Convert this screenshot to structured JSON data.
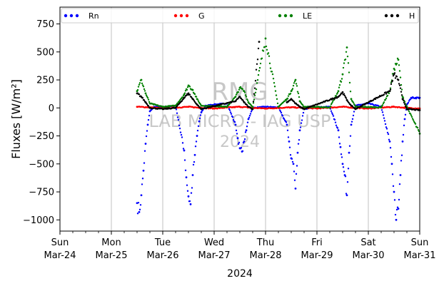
{
  "chart_data": {
    "type": "scatter",
    "title": "",
    "ylabel": "Fluxes [W/m²]",
    "xlabel": "2024",
    "ylim": [
      -1100,
      900
    ],
    "y_ticks": [
      750,
      500,
      250,
      0,
      -250,
      -500,
      -750,
      -1000
    ],
    "xlim": [
      "2024-03-24",
      "2024-03-31"
    ],
    "x_ticks": [
      {
        "date": "2024-03-24",
        "day": "Sun",
        "label": "Mar-24"
      },
      {
        "date": "2024-03-25",
        "day": "Mon",
        "label": "Mar-25"
      },
      {
        "date": "2024-03-26",
        "day": "Tue",
        "label": "Mar-26"
      },
      {
        "date": "2024-03-27",
        "day": "Wed",
        "label": "Mar-27"
      },
      {
        "date": "2024-03-28",
        "day": "Thu",
        "label": "Mar-28"
      },
      {
        "date": "2024-03-29",
        "day": "Fri",
        "label": "Mar-29"
      },
      {
        "date": "2024-03-30",
        "day": "Sat",
        "label": "Mar-30"
      },
      {
        "date": "2024-03-31",
        "day": "Sun",
        "label": "Mar-31"
      }
    ],
    "grid": "vertical",
    "legend_position": "top",
    "watermark": [
      "RMG",
      "LAB MICRO - IAG USP",
      "2024"
    ],
    "series": [
      {
        "name": "Rn",
        "color": "#0000ff",
        "points": [
          [
            "2024-03-25 12:00",
            -850
          ],
          [
            "2024-03-25 13:00",
            -930
          ],
          [
            "2024-03-25 14:00",
            -780
          ],
          [
            "2024-03-25 15:00",
            -560
          ],
          [
            "2024-03-25 16:00",
            -320
          ],
          [
            "2024-03-25 17:00",
            -150
          ],
          [
            "2024-03-25 18:00",
            -30
          ],
          [
            "2024-03-25 20:00",
            10
          ],
          [
            "2024-03-26 00:00",
            5
          ],
          [
            "2024-03-26 06:00",
            20
          ],
          [
            "2024-03-26 10:00",
            -380
          ],
          [
            "2024-03-26 11:00",
            -620
          ],
          [
            "2024-03-26 12:00",
            -790
          ],
          [
            "2024-03-26 13:00",
            -860
          ],
          [
            "2024-03-26 14:00",
            -600
          ],
          [
            "2024-03-26 15:00",
            -420
          ],
          [
            "2024-03-26 16:00",
            -250
          ],
          [
            "2024-03-26 17:00",
            -120
          ],
          [
            "2024-03-26 18:00",
            -40
          ],
          [
            "2024-03-26 20:00",
            20
          ],
          [
            "2024-03-27 00:00",
            30
          ],
          [
            "2024-03-27 06:00",
            40
          ],
          [
            "2024-03-27 10:00",
            -150
          ],
          [
            "2024-03-27 11:00",
            -270
          ],
          [
            "2024-03-27 12:00",
            -360
          ],
          [
            "2024-03-27 13:00",
            -390
          ],
          [
            "2024-03-27 14:00",
            -300
          ],
          [
            "2024-03-27 15:00",
            -200
          ],
          [
            "2024-03-27 16:00",
            -100
          ],
          [
            "2024-03-27 18:00",
            0
          ],
          [
            "2024-03-28 00:00",
            10
          ],
          [
            "2024-03-28 06:00",
            5
          ],
          [
            "2024-03-28 10:00",
            -150
          ],
          [
            "2024-03-28 11:00",
            -300
          ],
          [
            "2024-03-28 12:00",
            -450
          ],
          [
            "2024-03-28 13:00",
            -500
          ],
          [
            "2024-03-28 14:00",
            -720
          ],
          [
            "2024-03-28 15:00",
            -400
          ],
          [
            "2024-03-28 16:00",
            -200
          ],
          [
            "2024-03-28 18:00",
            -10
          ],
          [
            "2024-03-29 00:00",
            5
          ],
          [
            "2024-03-29 06:00",
            10
          ],
          [
            "2024-03-29 10:00",
            -200
          ],
          [
            "2024-03-29 11:00",
            -350
          ],
          [
            "2024-03-29 12:00",
            -500
          ],
          [
            "2024-03-29 13:00",
            -600
          ],
          [
            "2024-03-29 14:00",
            -780
          ],
          [
            "2024-03-29 15:00",
            -400
          ],
          [
            "2024-03-29 16:00",
            -150
          ],
          [
            "2024-03-29 18:00",
            20
          ],
          [
            "2024-03-30 00:00",
            40
          ],
          [
            "2024-03-30 06:00",
            10
          ],
          [
            "2024-03-30 10:00",
            -300
          ],
          [
            "2024-03-30 11:00",
            -500
          ],
          [
            "2024-03-30 12:00",
            -750
          ],
          [
            "2024-03-30 13:00",
            -1000
          ],
          [
            "2024-03-30 14:00",
            -900
          ],
          [
            "2024-03-30 15:00",
            -600
          ],
          [
            "2024-03-30 16:00",
            -300
          ],
          [
            "2024-03-30 17:00",
            -100
          ],
          [
            "2024-03-30 18:00",
            30
          ],
          [
            "2024-03-30 20:00",
            90
          ],
          [
            "2024-03-31 00:00",
            90
          ]
        ]
      },
      {
        "name": "G",
        "color": "#ff0000",
        "points": [
          [
            "2024-03-25 12:00",
            10
          ],
          [
            "2024-03-25 18:00",
            5
          ],
          [
            "2024-03-26 00:00",
            -5
          ],
          [
            "2024-03-26 12:00",
            10
          ],
          [
            "2024-03-26 18:00",
            0
          ],
          [
            "2024-03-27 00:00",
            -5
          ],
          [
            "2024-03-27 12:00",
            10
          ],
          [
            "2024-03-27 18:00",
            0
          ],
          [
            "2024-03-28 00:00",
            -5
          ],
          [
            "2024-03-28 12:00",
            5
          ],
          [
            "2024-03-28 18:00",
            0
          ],
          [
            "2024-03-29 00:00",
            -5
          ],
          [
            "2024-03-29 12:00",
            10
          ],
          [
            "2024-03-29 18:00",
            0
          ],
          [
            "2024-03-30 00:00",
            -5
          ],
          [
            "2024-03-30 12:00",
            10
          ],
          [
            "2024-03-30 18:00",
            0
          ],
          [
            "2024-03-31 00:00",
            -5
          ]
        ]
      },
      {
        "name": "LE",
        "color": "#008000",
        "points": [
          [
            "2024-03-25 12:00",
            150
          ],
          [
            "2024-03-25 14:00",
            250
          ],
          [
            "2024-03-25 16:00",
            130
          ],
          [
            "2024-03-25 18:00",
            40
          ],
          [
            "2024-03-26 00:00",
            10
          ],
          [
            "2024-03-26 06:00",
            20
          ],
          [
            "2024-03-26 10:00",
            120
          ],
          [
            "2024-03-26 12:00",
            200
          ],
          [
            "2024-03-26 14:00",
            160
          ],
          [
            "2024-03-26 16:00",
            80
          ],
          [
            "2024-03-26 18:00",
            20
          ],
          [
            "2024-03-27 06:00",
            10
          ],
          [
            "2024-03-27 10:00",
            100
          ],
          [
            "2024-03-27 12:00",
            180
          ],
          [
            "2024-03-27 14:00",
            150
          ],
          [
            "2024-03-27 16:00",
            50
          ],
          [
            "2024-03-27 18:00",
            10
          ],
          [
            "2024-03-28 00:00",
            620
          ],
          [
            "2024-03-28 06:00",
            10
          ],
          [
            "2024-03-28 10:00",
            80
          ],
          [
            "2024-03-28 12:00",
            150
          ],
          [
            "2024-03-28 14:00",
            250
          ],
          [
            "2024-03-28 16:00",
            60
          ],
          [
            "2024-03-28 18:00",
            10
          ],
          [
            "2024-03-29 06:00",
            5
          ],
          [
            "2024-03-29 10:00",
            150
          ],
          [
            "2024-03-29 12:00",
            300
          ],
          [
            "2024-03-29 14:00",
            540
          ],
          [
            "2024-03-29 16:00",
            80
          ],
          [
            "2024-03-29 18:00",
            10
          ],
          [
            "2024-03-30 06:00",
            5
          ],
          [
            "2024-03-30 10:00",
            150
          ],
          [
            "2024-03-30 12:00",
            350
          ],
          [
            "2024-03-30 14:00",
            430
          ],
          [
            "2024-03-30 16:00",
            100
          ],
          [
            "2024-03-30 18:00",
            10
          ],
          [
            "2024-03-31 00:00",
            -230
          ]
        ]
      },
      {
        "name": "H",
        "color": "#000000",
        "points": [
          [
            "2024-03-25 12:00",
            130
          ],
          [
            "2024-03-25 14:00",
            100
          ],
          [
            "2024-03-25 16:00",
            50
          ],
          [
            "2024-03-25 18:00",
            0
          ],
          [
            "2024-03-26 00:00",
            -10
          ],
          [
            "2024-03-26 06:00",
            0
          ],
          [
            "2024-03-26 10:00",
            90
          ],
          [
            "2024-03-26 12:00",
            130
          ],
          [
            "2024-03-26 14:00",
            80
          ],
          [
            "2024-03-26 16:00",
            30
          ],
          [
            "2024-03-26 18:00",
            -10
          ],
          [
            "2024-03-27 10:00",
            60
          ],
          [
            "2024-03-27 12:00",
            100
          ],
          [
            "2024-03-27 14:00",
            50
          ],
          [
            "2024-03-27 16:00",
            10
          ],
          [
            "2024-03-27 18:00",
            -10
          ],
          [
            "2024-03-27 21:00",
            590
          ],
          [
            "2024-03-28 10:00",
            50
          ],
          [
            "2024-03-28 12:00",
            80
          ],
          [
            "2024-03-28 14:00",
            40
          ],
          [
            "2024-03-28 16:00",
            10
          ],
          [
            "2024-03-28 18:00",
            -10
          ],
          [
            "2024-03-29 10:00",
            100
          ],
          [
            "2024-03-29 12:00",
            140
          ],
          [
            "2024-03-29 14:00",
            70
          ],
          [
            "2024-03-29 16:00",
            20
          ],
          [
            "2024-03-29 18:00",
            -10
          ],
          [
            "2024-03-30 10:00",
            150
          ],
          [
            "2024-03-30 12:00",
            300
          ],
          [
            "2024-03-30 14:00",
            250
          ],
          [
            "2024-03-30 16:00",
            80
          ],
          [
            "2024-03-30 18:00",
            -10
          ],
          [
            "2024-03-31 00:00",
            -20
          ]
        ]
      }
    ]
  }
}
